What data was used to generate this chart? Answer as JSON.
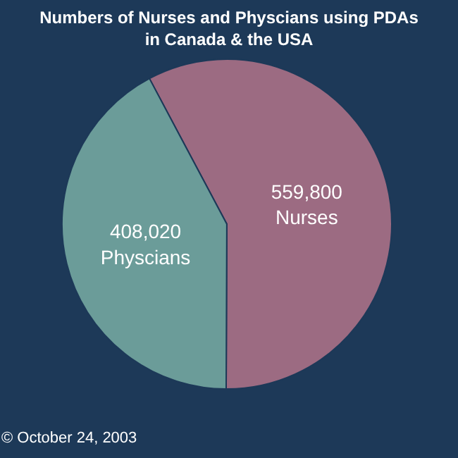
{
  "chart_data": {
    "type": "pie",
    "title": "Numbers of Nurses and Physcians using PDAs\nin Canada & the USA",
    "categories": [
      "Nurses",
      "Physcians"
    ],
    "values": [
      559800,
      408020
    ],
    "value_labels": [
      "559,800",
      "408,020"
    ],
    "colors": [
      "#9c6b82",
      "#6b9c99"
    ],
    "legend": false,
    "annotations": [
      "© October 24, 2003"
    ]
  }
}
